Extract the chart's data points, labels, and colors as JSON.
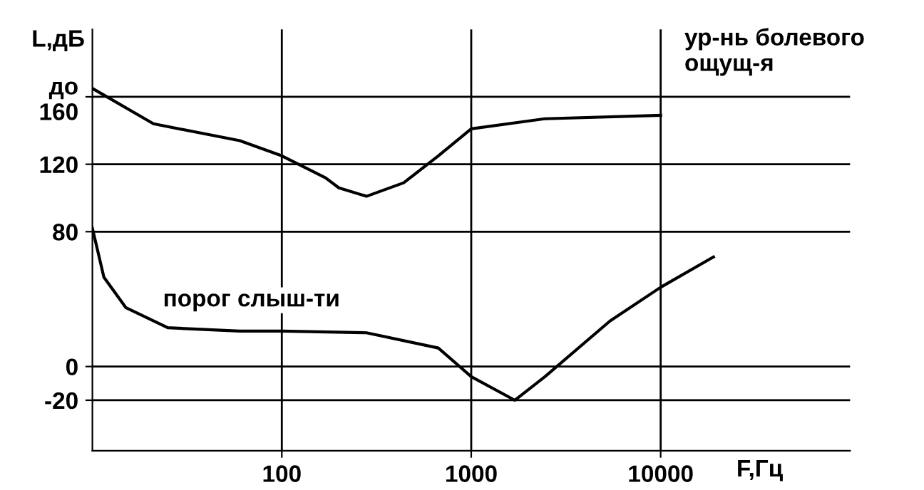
{
  "chart_data": {
    "type": "line",
    "xlabel": "F,Гц",
    "ylabel": "L,дБ",
    "series": [
      {
        "color": "#000000",
        "x": [
          10,
          21,
          60,
          100,
          170,
          200,
          280,
          440,
          670,
          1000,
          2450,
          10000
        ],
        "values": [
          165,
          144,
          134,
          125,
          112,
          106,
          101,
          109,
          125,
          141,
          147,
          149
        ]
      },
      {
        "color": "#000000",
        "x": [
          10,
          11.5,
          15,
          25,
          60,
          100,
          280,
          670,
          1000,
          1700,
          2450,
          5400,
          10000,
          19000
        ],
        "values": [
          82,
          53,
          35,
          23,
          21,
          21,
          20,
          11,
          -6,
          -20,
          -6,
          27,
          47,
          65
        ]
      }
    ],
    "annotations": [
      {
        "text": "ур-нь болевого\nощущ-я",
        "x": 10000,
        "y": 149
      },
      {
        "text": "порог слыш-ти",
        "x": 100,
        "y": 21
      }
    ],
    "log": "x",
    "xlim": [
      10,
      100000
    ],
    "xticks": [
      100,
      1000,
      10000
    ],
    "ylim": [
      -50,
      200
    ],
    "yticks": [
      -20,
      0,
      80,
      120,
      {
        "value": 160,
        "label": "до\n160"
      }
    ],
    "grid": true,
    "line_style": "solid",
    "marker": "none"
  }
}
